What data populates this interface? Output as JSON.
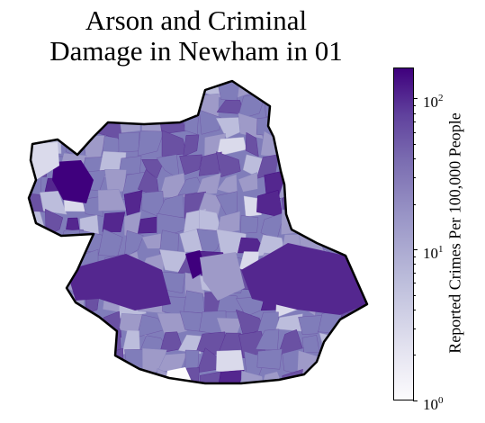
{
  "title": {
    "line1": "Arson and Criminal",
    "line2": "Damage in Newham in 01"
  },
  "colorbar": {
    "label": "Reported Crimes Per 100,000 People",
    "scale": "log",
    "min": 1,
    "max": 160,
    "colormap": "Purples",
    "ticks": [
      {
        "base": "10",
        "exp": "0",
        "value": 1
      },
      {
        "base": "10",
        "exp": "1",
        "value": 10
      },
      {
        "base": "10",
        "exp": "2",
        "value": 100
      }
    ]
  },
  "map": {
    "area": "Newham",
    "fill_colors": [
      "#3f007d",
      "#54278f",
      "#6a51a3",
      "#807dba",
      "#9e9ac8",
      "#bcbddc",
      "#dadaeb",
      "#efedf5"
    ],
    "outline_color": "#000000"
  }
}
